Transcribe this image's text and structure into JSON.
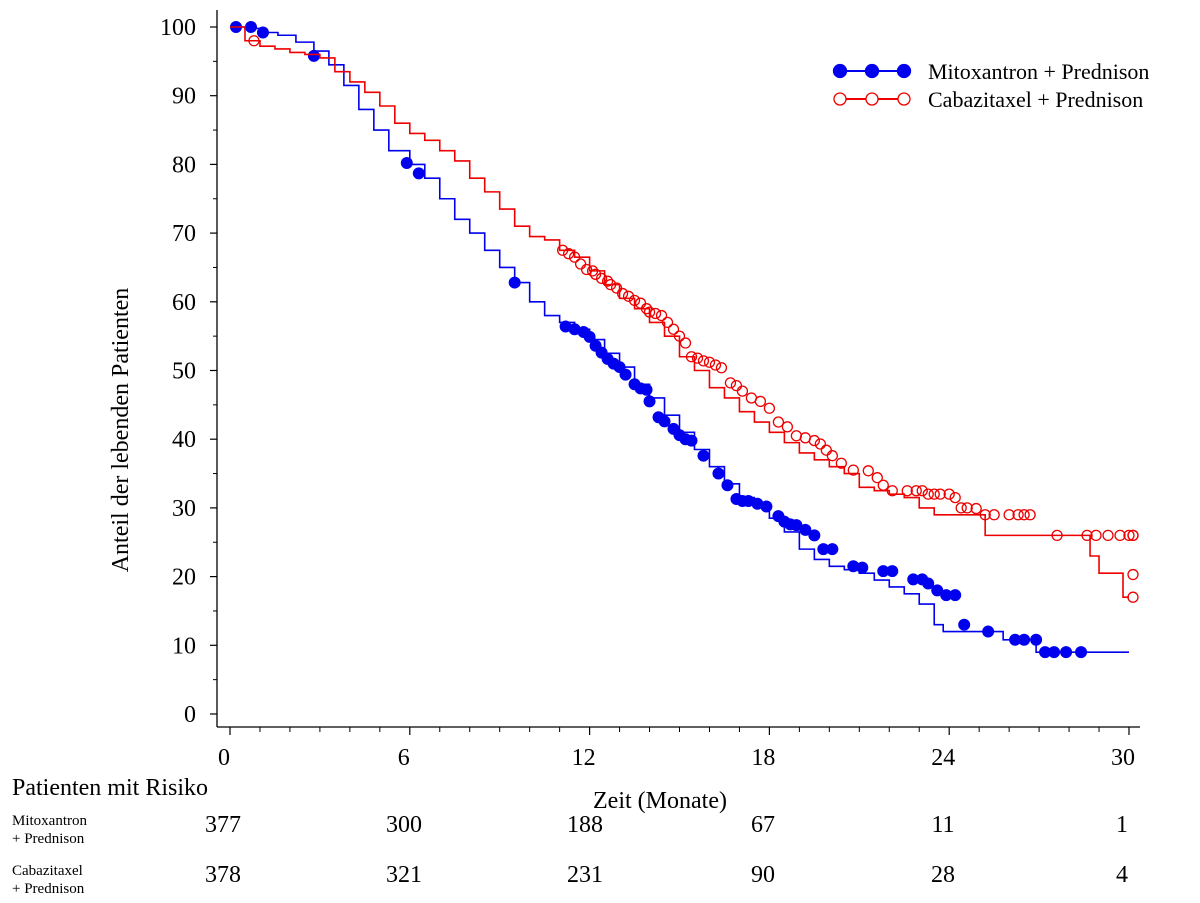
{
  "chart_data": {
    "type": "line",
    "subtype": "kaplan-meier",
    "title": "",
    "xlabel": "Zeit (Monate)",
    "ylabel": "Anteil der lebenden Patienten",
    "xlim": [
      0,
      30
    ],
    "ylim": [
      0,
      100
    ],
    "x_ticks": [
      "0",
      "6",
      "12",
      "18",
      "24",
      "30"
    ],
    "y_ticks": [
      "0",
      "10",
      "20",
      "30",
      "40",
      "50",
      "60",
      "70",
      "80",
      "90",
      "100"
    ],
    "grid": false,
    "legend_position": "top-right",
    "series": [
      {
        "name": "Mitoxantron + Prednison",
        "color": "#0000ee",
        "marker": "filled-circle",
        "steps": [
          [
            0,
            100
          ],
          [
            0.5,
            99.8
          ],
          [
            1,
            99.2
          ],
          [
            1.6,
            98.8
          ],
          [
            2.2,
            97.8
          ],
          [
            2.8,
            96.5
          ],
          [
            3.3,
            94.5
          ],
          [
            3.8,
            91.5
          ],
          [
            4.3,
            88
          ],
          [
            4.8,
            85
          ],
          [
            5.3,
            82
          ],
          [
            6,
            80
          ],
          [
            6.5,
            78
          ],
          [
            7,
            75
          ],
          [
            7.5,
            72
          ],
          [
            8,
            70
          ],
          [
            8.5,
            67.5
          ],
          [
            9,
            65
          ],
          [
            9.5,
            62.8
          ],
          [
            10,
            60
          ],
          [
            10.5,
            58
          ],
          [
            11,
            57
          ],
          [
            11.5,
            56
          ],
          [
            12,
            54.5
          ],
          [
            12.5,
            52.5
          ],
          [
            13,
            50.5
          ],
          [
            13.5,
            48
          ],
          [
            14,
            46
          ],
          [
            14.5,
            43.5
          ],
          [
            15,
            41
          ],
          [
            15.5,
            38.5
          ],
          [
            16,
            36
          ],
          [
            16.5,
            33.5
          ],
          [
            17,
            31.5
          ],
          [
            17.5,
            30.5
          ],
          [
            18,
            28.5
          ],
          [
            18.5,
            26.5
          ],
          [
            19,
            24
          ],
          [
            19.5,
            22.5
          ],
          [
            20,
            21.5
          ],
          [
            20.5,
            21
          ],
          [
            21,
            20.5
          ],
          [
            21.5,
            19.5
          ],
          [
            22,
            18.5
          ],
          [
            22.5,
            17.5
          ],
          [
            23,
            16
          ],
          [
            23.5,
            13
          ],
          [
            23.8,
            12
          ],
          [
            25,
            12
          ],
          [
            25.8,
            10.8
          ],
          [
            26.5,
            10.8
          ],
          [
            26.9,
            9
          ],
          [
            28.8,
            9
          ],
          [
            30,
            9
          ]
        ],
        "censored": [
          [
            0.2,
            100
          ],
          [
            0.7,
            100
          ],
          [
            1.1,
            99.2
          ],
          [
            2.8,
            95.8
          ],
          [
            5.9,
            80.2
          ],
          [
            6.3,
            78.7
          ],
          [
            9.5,
            62.8
          ],
          [
            11.2,
            56.4
          ],
          [
            11.5,
            56
          ],
          [
            11.8,
            55.6
          ],
          [
            12,
            54.9
          ],
          [
            12.2,
            53.6
          ],
          [
            12.4,
            52.6
          ],
          [
            12.6,
            51.7
          ],
          [
            12.8,
            51
          ],
          [
            13,
            50.5
          ],
          [
            13.2,
            49.4
          ],
          [
            13.5,
            48
          ],
          [
            13.7,
            47.4
          ],
          [
            13.9,
            47.2
          ],
          [
            14,
            45.5
          ],
          [
            14.3,
            43.2
          ],
          [
            14.5,
            42.6
          ],
          [
            14.8,
            41.5
          ],
          [
            15,
            40.6
          ],
          [
            15.2,
            40
          ],
          [
            15.4,
            39.8
          ],
          [
            15.8,
            37.6
          ],
          [
            16.3,
            35
          ],
          [
            16.6,
            33.3
          ],
          [
            16.9,
            31.3
          ],
          [
            17.1,
            31
          ],
          [
            17.3,
            31
          ],
          [
            17.6,
            30.6
          ],
          [
            17.9,
            30.2
          ],
          [
            18.3,
            28.8
          ],
          [
            18.5,
            28
          ],
          [
            18.7,
            27.6
          ],
          [
            18.9,
            27.5
          ],
          [
            19.2,
            26.8
          ],
          [
            19.5,
            26
          ],
          [
            19.8,
            24
          ],
          [
            20.1,
            24
          ],
          [
            20.8,
            21.5
          ],
          [
            21.1,
            21.3
          ],
          [
            21.8,
            20.8
          ],
          [
            22.1,
            20.8
          ],
          [
            22.8,
            19.6
          ],
          [
            23.1,
            19.6
          ],
          [
            23.3,
            19
          ],
          [
            23.6,
            18
          ],
          [
            23.9,
            17.3
          ],
          [
            24.2,
            17.3
          ],
          [
            24.5,
            13
          ],
          [
            25.3,
            12
          ],
          [
            26.2,
            10.8
          ],
          [
            26.5,
            10.8
          ],
          [
            26.9,
            10.8
          ],
          [
            27.2,
            9
          ],
          [
            27.5,
            9
          ],
          [
            27.9,
            9
          ],
          [
            28.4,
            9
          ]
        ]
      },
      {
        "name": "Cabazitaxel + Prednison",
        "color": "#ee0000",
        "marker": "open-circle",
        "steps": [
          [
            0,
            100
          ],
          [
            0.5,
            98
          ],
          [
            1,
            97.2
          ],
          [
            1.5,
            96.8
          ],
          [
            2,
            96.3
          ],
          [
            2.5,
            96
          ],
          [
            3,
            95.5
          ],
          [
            3.5,
            93.5
          ],
          [
            4,
            92
          ],
          [
            4.5,
            90.5
          ],
          [
            5,
            88.5
          ],
          [
            5.5,
            86
          ],
          [
            6,
            84.5
          ],
          [
            6.5,
            83.5
          ],
          [
            7,
            82
          ],
          [
            7.5,
            80.5
          ],
          [
            8,
            78
          ],
          [
            8.5,
            76
          ],
          [
            9,
            73.5
          ],
          [
            9.5,
            71
          ],
          [
            10,
            69.5
          ],
          [
            10.5,
            69
          ],
          [
            11,
            67.5
          ],
          [
            11.5,
            66.5
          ],
          [
            12,
            64.5
          ],
          [
            12.5,
            62.5
          ],
          [
            13,
            60.5
          ],
          [
            13.5,
            59
          ],
          [
            14,
            57
          ],
          [
            14.5,
            55
          ],
          [
            15,
            52
          ],
          [
            15.5,
            50
          ],
          [
            16,
            47.5
          ],
          [
            16.5,
            46
          ],
          [
            17,
            44
          ],
          [
            17.5,
            42.5
          ],
          [
            18,
            41
          ],
          [
            18.5,
            39.5
          ],
          [
            19,
            38
          ],
          [
            19.5,
            37
          ],
          [
            20,
            36
          ],
          [
            20.5,
            35
          ],
          [
            21,
            33
          ],
          [
            21.5,
            32.5
          ],
          [
            22,
            32
          ],
          [
            22.5,
            31.5
          ],
          [
            23,
            30
          ],
          [
            23.5,
            29
          ],
          [
            24,
            29
          ],
          [
            24.5,
            29
          ],
          [
            25,
            29
          ],
          [
            25.2,
            26
          ],
          [
            26,
            26
          ],
          [
            27,
            26
          ],
          [
            28,
            26
          ],
          [
            28.7,
            26
          ],
          [
            28.7,
            23
          ],
          [
            29,
            20.5
          ],
          [
            29.5,
            20.5
          ],
          [
            29.8,
            17
          ],
          [
            30,
            17
          ]
        ],
        "censored": [
          [
            0.8,
            98
          ],
          [
            11.1,
            67.5
          ],
          [
            11.3,
            67
          ],
          [
            11.5,
            66.5
          ],
          [
            11.7,
            65.5
          ],
          [
            11.9,
            64.7
          ],
          [
            12.1,
            64.5
          ],
          [
            12.2,
            64
          ],
          [
            12.4,
            63.4
          ],
          [
            12.6,
            63
          ],
          [
            12.7,
            62.5
          ],
          [
            12.9,
            62
          ],
          [
            13.1,
            61.2
          ],
          [
            13.3,
            60.8
          ],
          [
            13.5,
            60.2
          ],
          [
            13.7,
            59.8
          ],
          [
            13.9,
            59
          ],
          [
            14,
            58.5
          ],
          [
            14.2,
            58.3
          ],
          [
            14.4,
            58
          ],
          [
            14.6,
            57
          ],
          [
            14.8,
            56
          ],
          [
            15,
            55
          ],
          [
            15.2,
            54
          ],
          [
            15.4,
            52
          ],
          [
            15.6,
            51.8
          ],
          [
            15.8,
            51.4
          ],
          [
            16,
            51.2
          ],
          [
            16.2,
            50.8
          ],
          [
            16.4,
            50.4
          ],
          [
            16.7,
            48.2
          ],
          [
            16.9,
            47.8
          ],
          [
            17.1,
            47
          ],
          [
            17.4,
            46
          ],
          [
            17.7,
            45.5
          ],
          [
            18,
            44.5
          ],
          [
            18.3,
            42.5
          ],
          [
            18.6,
            41.8
          ],
          [
            18.9,
            40.5
          ],
          [
            19.2,
            40.2
          ],
          [
            19.5,
            39.8
          ],
          [
            19.7,
            39.3
          ],
          [
            19.9,
            38.4
          ],
          [
            20.1,
            37.6
          ],
          [
            20.4,
            36.5
          ],
          [
            20.8,
            35.5
          ],
          [
            21.3,
            35.4
          ],
          [
            21.6,
            34.4
          ],
          [
            21.8,
            33.3
          ],
          [
            22.1,
            32.5
          ],
          [
            22.6,
            32.5
          ],
          [
            22.9,
            32.5
          ],
          [
            23.1,
            32.5
          ],
          [
            23.3,
            32
          ],
          [
            23.5,
            32
          ],
          [
            23.7,
            32
          ],
          [
            24,
            32
          ],
          [
            24.2,
            31.5
          ],
          [
            24.4,
            30
          ],
          [
            24.6,
            30
          ],
          [
            24.9,
            29.9
          ],
          [
            25.2,
            29
          ],
          [
            25.5,
            29
          ],
          [
            26,
            29
          ],
          [
            26.3,
            29
          ],
          [
            26.5,
            29
          ],
          [
            26.7,
            29
          ],
          [
            27.6,
            26
          ],
          [
            28.6,
            26
          ],
          [
            28.9,
            26
          ],
          [
            29.3,
            26
          ],
          [
            29.7,
            26
          ],
          [
            30,
            26
          ],
          [
            30.2,
            26
          ],
          [
            30.6,
            26
          ],
          [
            31.2,
            20.3
          ],
          [
            31.6,
            17
          ]
        ]
      }
    ]
  },
  "risk_table": {
    "title": "Patienten mit Risiko",
    "times": [
      "0",
      "6",
      "12",
      "18",
      "24",
      "30"
    ],
    "rows": [
      {
        "label_line1": "Mitoxantron",
        "label_line2": "+ Prednison",
        "values": [
          "377",
          "300",
          "188",
          "67",
          "11",
          "1"
        ]
      },
      {
        "label_line1": "Cabazitaxel",
        "label_line2": "+ Prednison",
        "values": [
          "378",
          "321",
          "231",
          "90",
          "28",
          "4"
        ]
      }
    ]
  }
}
